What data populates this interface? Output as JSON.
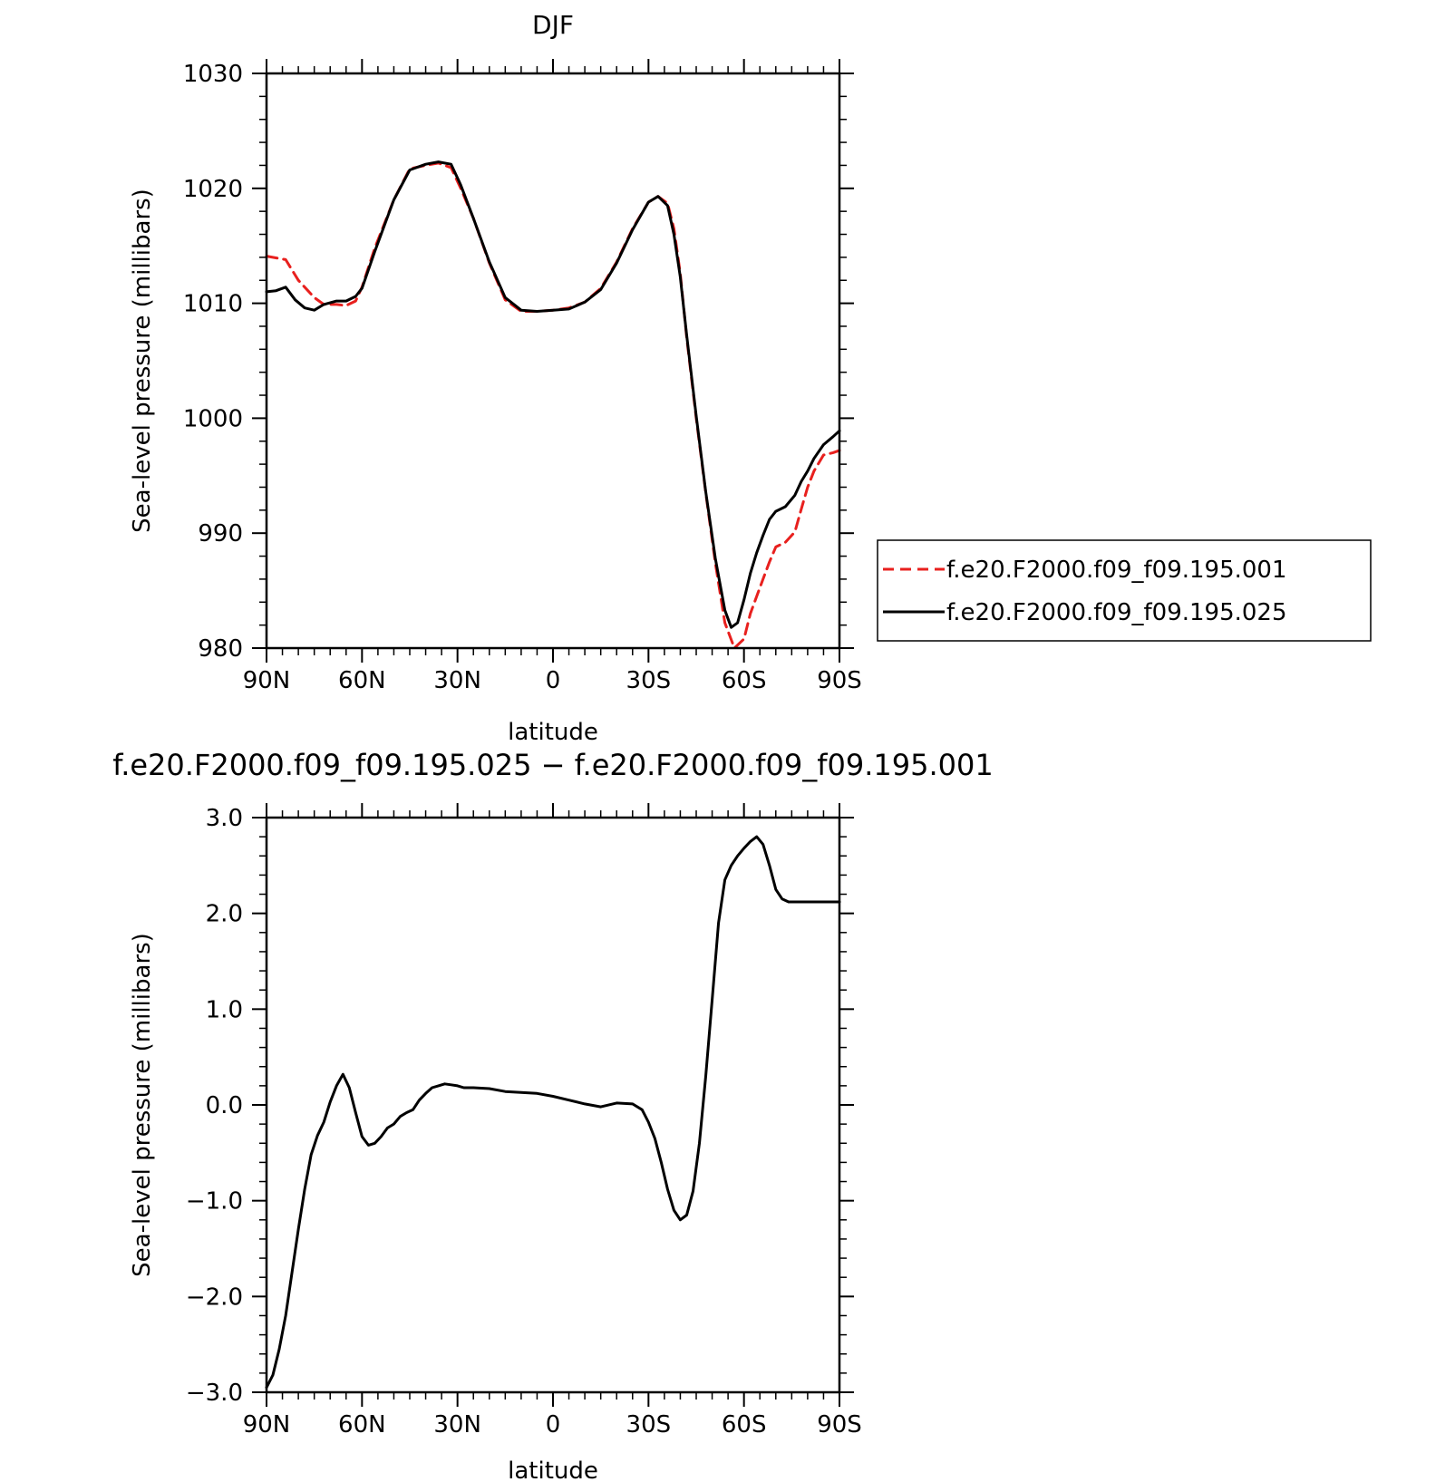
{
  "chart_data": [
    {
      "type": "line",
      "title": "DJF",
      "xlabel": "latitude",
      "ylabel": "Sea-level pressure (millibars)",
      "xlim": [
        90,
        -90
      ],
      "ylim": [
        980,
        1030
      ],
      "xticks": [
        90,
        60,
        30,
        0,
        -30,
        -60,
        -90
      ],
      "xticklabels": [
        "90N",
        "60N",
        "30N",
        "0",
        "30S",
        "60S",
        "90S"
      ],
      "yticks": [
        980,
        990,
        1000,
        1010,
        1020,
        1030
      ],
      "yticklabels": [
        "980",
        "990",
        "1000",
        "1010",
        "1020",
        "1030"
      ],
      "legend_position": "right",
      "series": [
        {
          "name": "f.e20.F2000.f09_f09.195.001",
          "color": "#e8201e",
          "dash": "dashed",
          "x": [
            90,
            84,
            80,
            75,
            72,
            68,
            65,
            62,
            60,
            56,
            50,
            45,
            40,
            36,
            32,
            29,
            25,
            20,
            15,
            10,
            5,
            0,
            -5,
            -10,
            -15,
            -20,
            -25,
            -30,
            -33,
            -36,
            -38,
            -40,
            -42,
            -45,
            -48,
            -51,
            -54,
            -57,
            -60,
            -62,
            -64,
            -66,
            -68,
            -70,
            -73,
            -76,
            -78,
            -80,
            -82,
            -85,
            -88,
            -90
          ],
          "y": [
            1014.1,
            1013.8,
            1012.0,
            1010.5,
            1009.9,
            1009.9,
            1009.8,
            1010.2,
            1011.4,
            1014.8,
            1019.0,
            1021.7,
            1022.0,
            1022.2,
            1021.8,
            1020.0,
            1017.4,
            1013.5,
            1010.3,
            1009.3,
            1009.3,
            1009.4,
            1009.6,
            1010.1,
            1011.3,
            1013.6,
            1016.5,
            1018.8,
            1019.3,
            1018.7,
            1016.5,
            1012.6,
            1007.0,
            1000.0,
            993.5,
            987.4,
            982.2,
            980.0,
            980.8,
            983.0,
            984.5,
            986.0,
            987.5,
            988.8,
            989.2,
            990.1,
            992.1,
            994.0,
            995.4,
            996.8,
            997.0,
            997.2
          ]
        },
        {
          "name": "f.e20.F2000.f09_f09.195.025",
          "color": "#000000",
          "dash": "solid",
          "x": [
            90,
            87,
            84,
            81,
            78,
            75,
            72,
            68,
            65,
            62,
            60,
            56,
            50,
            45,
            40,
            36,
            32,
            29,
            25,
            20,
            15,
            10,
            5,
            0,
            -5,
            -10,
            -15,
            -20,
            -25,
            -30,
            -33,
            -36,
            -38,
            -40,
            -42,
            -45,
            -48,
            -51,
            -54,
            -56,
            -58,
            -60,
            -62,
            -64,
            -66,
            -68,
            -70,
            -73,
            -76,
            -78,
            -80,
            -82,
            -85,
            -88,
            -90
          ],
          "y": [
            1011.0,
            1011.1,
            1011.4,
            1010.3,
            1009.6,
            1009.4,
            1009.9,
            1010.2,
            1010.2,
            1010.6,
            1011.3,
            1014.5,
            1019.0,
            1021.6,
            1022.1,
            1022.3,
            1022.1,
            1020.3,
            1017.4,
            1013.6,
            1010.5,
            1009.4,
            1009.3,
            1009.4,
            1009.5,
            1010.1,
            1011.2,
            1013.5,
            1016.4,
            1018.8,
            1019.3,
            1018.5,
            1016.0,
            1012.3,
            1007.2,
            1000.2,
            993.6,
            987.8,
            983.3,
            981.8,
            982.2,
            984.2,
            986.5,
            988.3,
            989.8,
            991.2,
            991.9,
            992.3,
            993.3,
            994.5,
            995.4,
            996.5,
            997.7,
            998.4,
            998.9
          ]
        }
      ]
    },
    {
      "type": "line",
      "title": "f.e20.F2000.f09_f09.195.025 − f.e20.F2000.f09_f09.195.001",
      "xlabel": "latitude",
      "ylabel": "Sea-level pressure (millibars)",
      "xlim": [
        90,
        -90
      ],
      "ylim": [
        -3.0,
        3.0
      ],
      "xticks": [
        90,
        60,
        30,
        0,
        -30,
        -60,
        -90
      ],
      "xticklabels": [
        "90N",
        "60N",
        "30N",
        "0",
        "30S",
        "60S",
        "90S"
      ],
      "yticks": [
        -3.0,
        -2.0,
        -1.0,
        0.0,
        1.0,
        2.0,
        3.0
      ],
      "yticklabels": [
        "−3.0",
        "−2.0",
        "−1.0",
        "0.0",
        "1.0",
        "2.0",
        "3.0"
      ],
      "series": [
        {
          "color": "#000000",
          "dash": "solid",
          "x": [
            90,
            88,
            86,
            84,
            82,
            80,
            78,
            76,
            74,
            72,
            70,
            68,
            66,
            64,
            62,
            60,
            58,
            56,
            54,
            52,
            50,
            48,
            46,
            44,
            42,
            40,
            38,
            36,
            34,
            32,
            30,
            28,
            25,
            20,
            15,
            10,
            5,
            0,
            -5,
            -10,
            -15,
            -20,
            -25,
            -28,
            -30,
            -32,
            -34,
            -36,
            -38,
            -40,
            -42,
            -44,
            -46,
            -48,
            -50,
            -52,
            -54,
            -56,
            -58,
            -60,
            -62,
            -64,
            -66,
            -68,
            -70,
            -72,
            -74,
            -76,
            -78,
            -80,
            -82,
            -84,
            -86,
            -88,
            -90
          ],
          "y": [
            -2.95,
            -2.82,
            -2.55,
            -2.2,
            -1.75,
            -1.3,
            -0.88,
            -0.52,
            -0.32,
            -0.18,
            0.03,
            0.2,
            0.32,
            0.18,
            -0.08,
            -0.33,
            -0.42,
            -0.4,
            -0.33,
            -0.24,
            -0.2,
            -0.12,
            -0.08,
            -0.05,
            0.05,
            0.12,
            0.18,
            0.2,
            0.22,
            0.21,
            0.2,
            0.18,
            0.18,
            0.17,
            0.14,
            0.13,
            0.12,
            0.09,
            0.05,
            0.01,
            -0.02,
            0.02,
            0.01,
            -0.05,
            -0.18,
            -0.35,
            -0.6,
            -0.88,
            -1.1,
            -1.2,
            -1.15,
            -0.9,
            -0.4,
            0.3,
            1.1,
            1.9,
            2.35,
            2.5,
            2.6,
            2.68,
            2.75,
            2.8,
            2.72,
            2.5,
            2.25,
            2.15,
            2.12,
            2.12,
            2.12,
            2.12,
            2.12,
            2.12,
            2.12,
            2.12,
            2.12
          ]
        }
      ]
    }
  ]
}
